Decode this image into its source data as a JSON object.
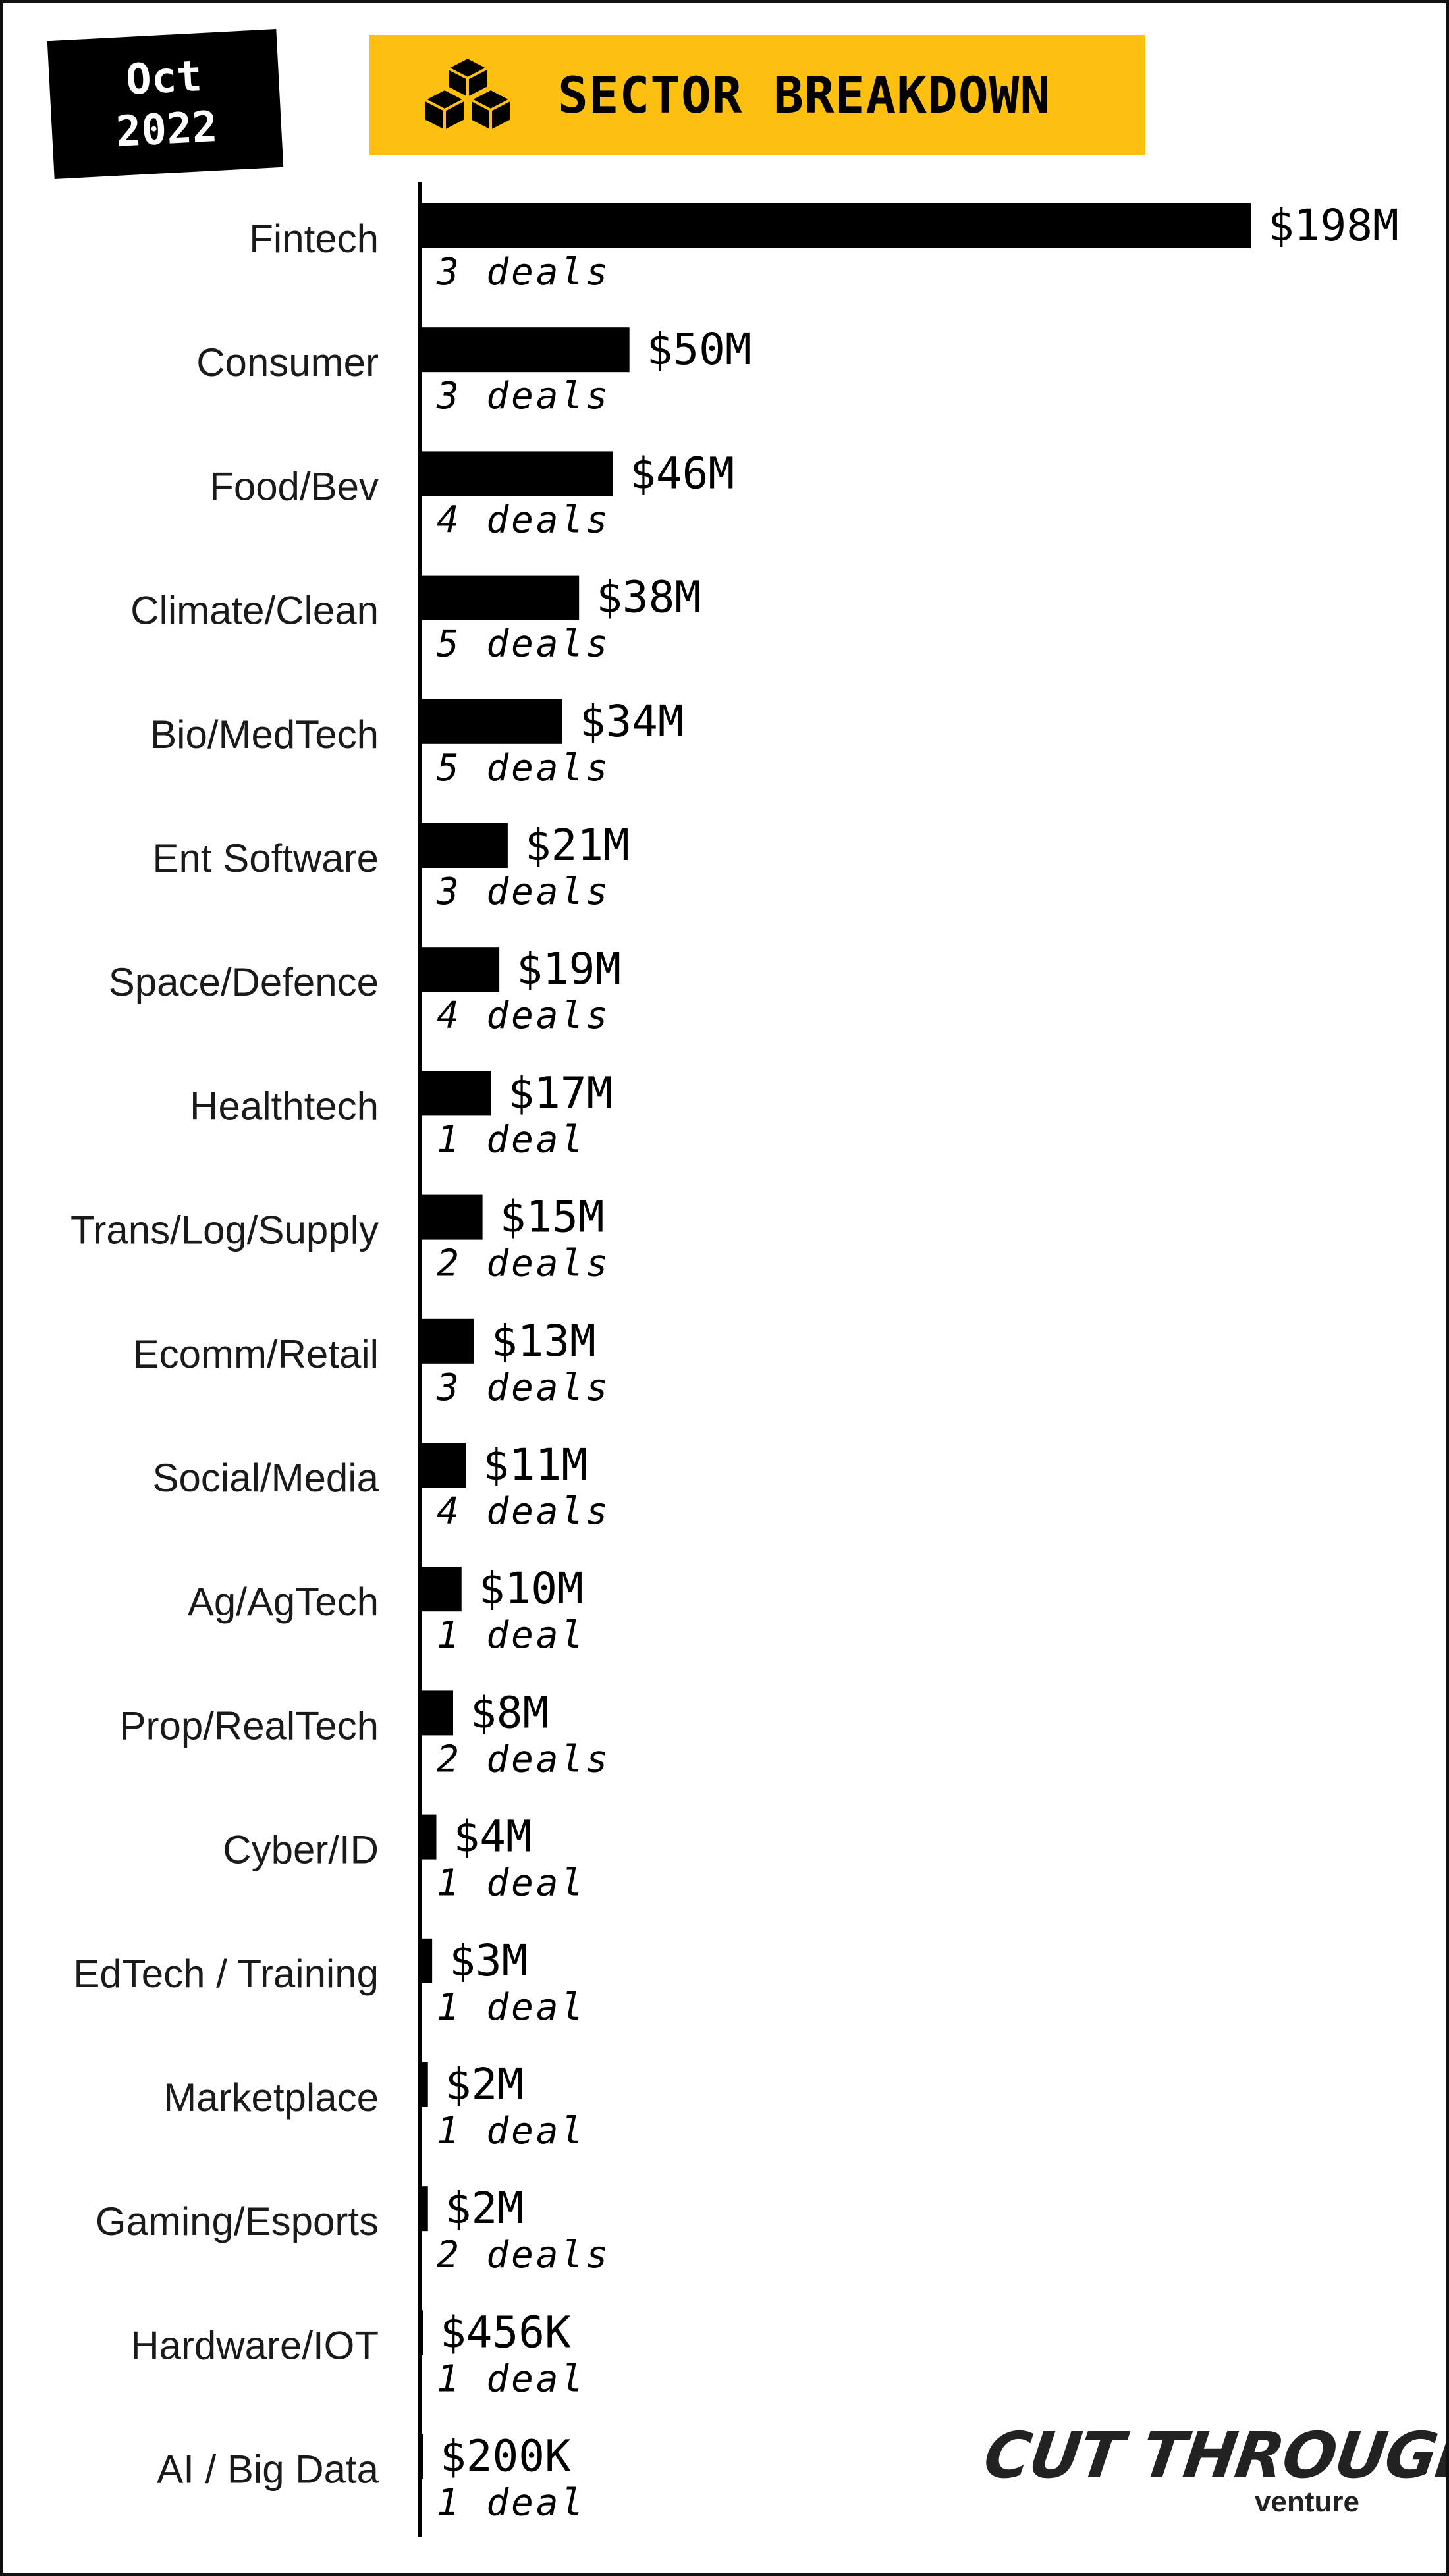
{
  "header": {
    "date_month": "Oct",
    "date_year": "2022",
    "title": "SECTOR BREAKDOWN",
    "icon": "cubes-icon",
    "banner_color": "#fdbf10"
  },
  "brand": {
    "name": "CUT THROUGH",
    "sub": "venture"
  },
  "chart_data": {
    "type": "bar",
    "orientation": "horizontal",
    "title": "SECTOR BREAKDOWN",
    "xlabel": "",
    "ylabel": "",
    "unit": "$M",
    "xlim": [
      0,
      198
    ],
    "grid": false,
    "bar_color": "#000000",
    "categories": [
      "Fintech",
      "Consumer",
      "Food/Bev",
      "Climate/Clean",
      "Bio/MedTech",
      "Ent Software",
      "Space/Defence",
      "Healthtech",
      "Trans/Log/Supply",
      "Ecomm/Retail",
      "Social/Media",
      "Ag/AgTech",
      "Prop/RealTech",
      "Cyber/ID",
      "EdTech / Training",
      "Marketplace",
      "Gaming/Esports",
      "Hardware/IOT",
      "AI / Big Data"
    ],
    "values": [
      198,
      50,
      46,
      38,
      34,
      21,
      19,
      17,
      15,
      13,
      11,
      10,
      8,
      4,
      3,
      2,
      2,
      0.456,
      0.2
    ],
    "value_labels": [
      "$198M",
      "$50M",
      "$46M",
      "$38M",
      "$34M",
      "$21M",
      "$19M",
      "$17M",
      "$15M",
      "$13M",
      "$11M",
      "$10M",
      "$8M",
      "$4M",
      "$3M",
      "$2M",
      "$2M",
      "$456K",
      "$200K"
    ],
    "deals": [
      "3 deals",
      "3 deals",
      "4 deals",
      "5 deals",
      "5 deals",
      "3 deals",
      "4 deals",
      "1 deal",
      "2 deals",
      "3 deals",
      "4 deals",
      "1 deal",
      "2 deals",
      "1 deal",
      "1 deal",
      "1 deal",
      "2 deals",
      "1 deal",
      "1 deal"
    ]
  }
}
